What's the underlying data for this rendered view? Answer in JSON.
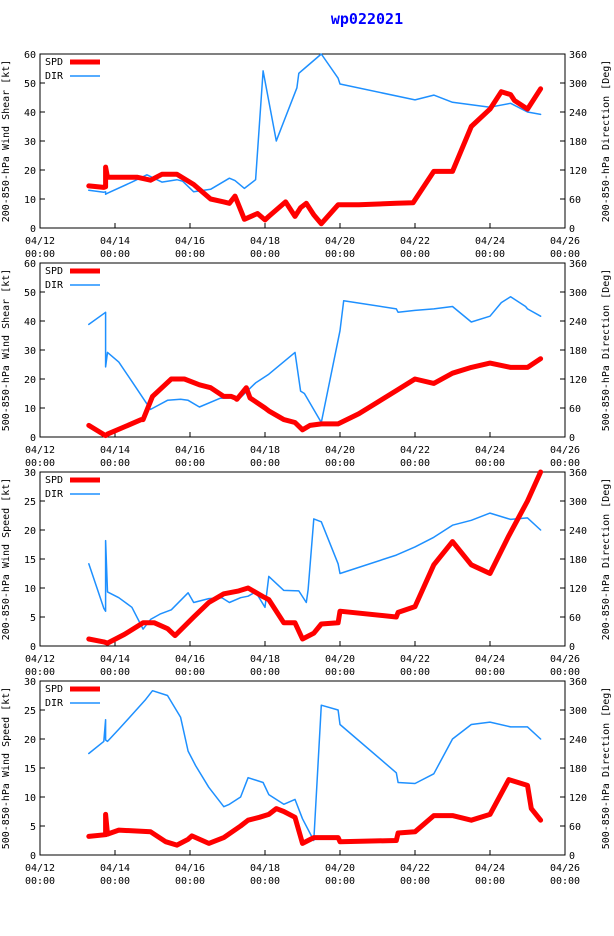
{
  "title": "wp022021",
  "colors": {
    "spd": "#ff0000",
    "dir": "#1e90ff",
    "axis": "#000000"
  },
  "legend": {
    "spd": "SPD",
    "dir": "DIR"
  },
  "x_tick_labels": [
    {
      "date": "04/12",
      "time": "00:00"
    },
    {
      "date": "04/14",
      "time": "00:00"
    },
    {
      "date": "04/16",
      "time": "00:00"
    },
    {
      "date": "04/18",
      "time": "00:00"
    },
    {
      "date": "04/20",
      "time": "00:00"
    },
    {
      "date": "04/22",
      "time": "00:00"
    },
    {
      "date": "04/24",
      "time": "00:00"
    },
    {
      "date": "04/26",
      "time": "00:00"
    }
  ],
  "chart_data": [
    {
      "type": "line",
      "title": "wp022021",
      "ylabel": "200-850-hPa Wind Shear [kt]",
      "y2label": "200-850-hPa Direction [Deg]",
      "xlim": [
        0,
        14
      ],
      "ylim": [
        0,
        60
      ],
      "y2lim": [
        0,
        360
      ],
      "yticks": [
        0,
        10,
        20,
        30,
        40,
        50,
        60
      ],
      "y2ticks": [
        0,
        60,
        120,
        180,
        240,
        300,
        360
      ],
      "series": [
        {
          "name": "SPD",
          "axis": "left",
          "x": [
            1.3,
            1.7,
            1.75,
            1.75,
            1.8,
            2.6,
            2.95,
            3.25,
            3.65,
            4.1,
            4.55,
            4.9,
            5.05,
            5.2,
            5.45,
            5.8,
            6.0,
            6.1,
            6.55,
            6.8,
            6.95,
            7.1,
            7.3,
            7.5,
            7.95,
            8.0,
            8.5,
            9.5,
            9.95,
            10.5,
            11.0,
            11.5,
            12.0,
            12.3,
            12.55,
            12.65,
            13.0,
            13.35
          ],
          "values": [
            14.5,
            14,
            14.2,
            21,
            17.5,
            17.5,
            16.5,
            18.5,
            18.5,
            15,
            10,
            9,
            8.5,
            11,
            3,
            5,
            2.8,
            4,
            9,
            4,
            7,
            8.5,
            4.5,
            1.5,
            8,
            8,
            8,
            8.5,
            8.7,
            19.5,
            19.5,
            35,
            41,
            47,
            46,
            44,
            41,
            48
          ]
        },
        {
          "name": "DIR",
          "axis": "right",
          "x": [
            1.3,
            1.7,
            1.75,
            1.75,
            1.8,
            2.45,
            2.85,
            3.25,
            3.65,
            3.8,
            4.1,
            4.55,
            5.05,
            5.2,
            5.45,
            5.75,
            5.95,
            6.3,
            6.35,
            6.4,
            6.85,
            6.9,
            7.05,
            7.5,
            7.95,
            8.0,
            10.0,
            10.5,
            11.0,
            11.5,
            12.0,
            12.55,
            13.0,
            13.35
          ],
          "values": [
            78,
            74,
            75,
            70,
            72,
            95,
            110,
            95,
            100,
            97,
            75,
            80,
            103,
            98,
            82,
            100,
            325,
            180,
            190,
            200,
            290,
            320,
            330,
            360,
            310,
            298,
            265,
            275,
            260,
            255,
            250,
            258,
            240,
            235
          ]
        }
      ]
    },
    {
      "type": "line",
      "title": "",
      "ylabel": "500-850-hPa Wind Shear [kt]",
      "y2label": "500-850-hPa Direction [Deg]",
      "xlim": [
        0,
        14
      ],
      "ylim": [
        0,
        60
      ],
      "y2lim": [
        0,
        360
      ],
      "yticks": [
        0,
        10,
        20,
        30,
        40,
        50,
        60
      ],
      "y2ticks": [
        0,
        60,
        120,
        180,
        240,
        300,
        360
      ],
      "series": [
        {
          "name": "SPD",
          "axis": "left",
          "x": [
            1.3,
            1.75,
            1.8,
            2.7,
            2.75,
            3.0,
            3.5,
            3.85,
            4.25,
            4.55,
            4.9,
            5.1,
            5.2,
            5.25,
            5.5,
            5.6,
            6.0,
            6.1,
            6.5,
            6.8,
            7.0,
            7.2,
            7.5,
            7.95,
            8.5,
            9.0,
            9.5,
            10.0,
            10.5,
            11.0,
            11.5,
            12.0,
            12.55,
            13.0,
            13.35
          ],
          "values": [
            4,
            0.5,
            1,
            6,
            6,
            14,
            20,
            20,
            18,
            17,
            14,
            14,
            13.5,
            13,
            17,
            13.5,
            10,
            9,
            6,
            5,
            2.5,
            4,
            4.5,
            4.5,
            8,
            12,
            16,
            20,
            18.5,
            22,
            24,
            25.5,
            24,
            24,
            27
          ]
        },
        {
          "name": "DIR",
          "axis": "right",
          "x": [
            1.3,
            1.75,
            1.75,
            1.8,
            2.1,
            2.45,
            2.95,
            3.4,
            3.75,
            3.95,
            4.25,
            4.8,
            5.35,
            5.75,
            6.1,
            6.8,
            6.95,
            7.05,
            7.5,
            8.0,
            8.1,
            9.5,
            9.55,
            10.0,
            10.5,
            11.0,
            11.5,
            12.0,
            12.3,
            12.55,
            12.95,
            13.0,
            13.35
          ],
          "values": [
            233,
            258,
            145,
            175,
            155,
            115,
            57,
            76,
            78,
            76,
            62,
            80,
            82,
            112,
            130,
            175,
            95,
            90,
            30,
            220,
            282,
            265,
            258,
            262,
            265,
            270,
            238,
            250,
            278,
            290,
            270,
            265,
            250
          ]
        }
      ]
    },
    {
      "type": "line",
      "title": "",
      "ylabel": "200-850-hPa Wind Speed [kt]",
      "y2label": "200-850-hPa Direction [Deg]",
      "xlim": [
        0,
        14
      ],
      "ylim": [
        0,
        30
      ],
      "y2lim": [
        0,
        360
      ],
      "yticks": [
        0,
        5,
        10,
        15,
        20,
        25,
        30
      ],
      "y2ticks": [
        0,
        60,
        120,
        180,
        240,
        300,
        360
      ],
      "series": [
        {
          "name": "SPD",
          "axis": "left",
          "x": [
            1.3,
            1.7,
            1.75,
            1.8,
            2.25,
            2.75,
            3.05,
            3.4,
            3.6,
            4.1,
            4.5,
            4.9,
            5.3,
            5.55,
            5.95,
            6.1,
            6.5,
            6.8,
            7.0,
            7.3,
            7.5,
            7.95,
            8.0,
            9.5,
            9.55,
            10.0,
            10.5,
            11.0,
            11.5,
            12.0,
            12.5,
            13.0,
            13.35
          ],
          "values": [
            1.2,
            0.7,
            0.6,
            0.5,
            2,
            4,
            4,
            3,
            1.8,
            5,
            7.5,
            9,
            9.5,
            10,
            8.5,
            8,
            4,
            4,
            1.2,
            2.2,
            3.8,
            4,
            6,
            5,
            5.8,
            6.8,
            14,
            18,
            14,
            12.5,
            19,
            25,
            30
          ]
        },
        {
          "name": "DIR",
          "axis": "right",
          "x": [
            1.3,
            1.7,
            1.75,
            1.75,
            1.8,
            2.1,
            2.45,
            2.75,
            2.95,
            3.2,
            3.5,
            3.95,
            4.1,
            4.5,
            4.85,
            5.05,
            5.35,
            5.55,
            5.75,
            6.0,
            6.1,
            6.5,
            6.9,
            7.1,
            7.15,
            7.3,
            7.5,
            7.95,
            8.0,
            9.5,
            10.0,
            10.5,
            11.0,
            11.5,
            12.0,
            12.55,
            13.0,
            13.35
          ],
          "values": [
            170,
            78,
            72,
            218,
            112,
            100,
            80,
            35,
            55,
            66,
            75,
            110,
            90,
            98,
            100,
            90,
            100,
            103,
            112,
            80,
            144,
            115,
            114,
            90,
            116,
            263,
            257,
            170,
            150,
            188,
            205,
            225,
            250,
            260,
            275,
            262,
            265,
            240
          ]
        }
      ]
    },
    {
      "type": "line",
      "title": "",
      "ylabel": "500-850-hPa Wind Speed [kt]",
      "y2label": "500-850-hPa Direction [Deg]",
      "xlim": [
        0,
        14
      ],
      "ylim": [
        0,
        30
      ],
      "y2lim": [
        0,
        360
      ],
      "yticks": [
        0,
        5,
        10,
        15,
        20,
        25,
        30
      ],
      "y2ticks": [
        0,
        60,
        120,
        180,
        240,
        300,
        360
      ],
      "series": [
        {
          "name": "SPD",
          "axis": "left",
          "x": [
            1.3,
            1.75,
            1.75,
            1.8,
            2.1,
            2.95,
            3.35,
            3.65,
            3.95,
            4.05,
            4.5,
            4.9,
            5.35,
            5.55,
            5.85,
            6.1,
            6.3,
            6.5,
            6.8,
            7.0,
            7.3,
            7.95,
            8.0,
            9.5,
            9.55,
            10.0,
            10.5,
            11.0,
            11.5,
            12.0,
            12.5,
            13.0,
            13.1,
            13.35
          ],
          "values": [
            3.2,
            3.5,
            7,
            3.6,
            4.3,
            4,
            2.3,
            1.7,
            2.7,
            3.3,
            2,
            3,
            5,
            6,
            6.5,
            7,
            8,
            7.5,
            6.5,
            2,
            3,
            3,
            2.3,
            2.5,
            3.8,
            4,
            6.8,
            6.8,
            6,
            7,
            13,
            12,
            8,
            6
          ]
        },
        {
          "name": "DIR",
          "axis": "right",
          "x": [
            1.3,
            1.7,
            1.75,
            1.75,
            1.8,
            2.1,
            2.8,
            3.0,
            3.4,
            3.75,
            3.95,
            4.15,
            4.5,
            4.9,
            5.05,
            5.35,
            5.55,
            5.95,
            6.1,
            6.5,
            6.8,
            7.0,
            7.3,
            7.5,
            7.95,
            8.0,
            9.5,
            9.55,
            10.0,
            10.5,
            11.0,
            11.5,
            12.0,
            12.55,
            13.0,
            13.35
          ],
          "values": [
            210,
            235,
            280,
            238,
            235,
            260,
            320,
            340,
            330,
            285,
            215,
            185,
            140,
            100,
            105,
            120,
            160,
            150,
            125,
            105,
            115,
            75,
            30,
            310,
            300,
            270,
            170,
            150,
            148,
            168,
            240,
            270,
            275,
            265,
            265,
            240
          ]
        }
      ]
    }
  ]
}
